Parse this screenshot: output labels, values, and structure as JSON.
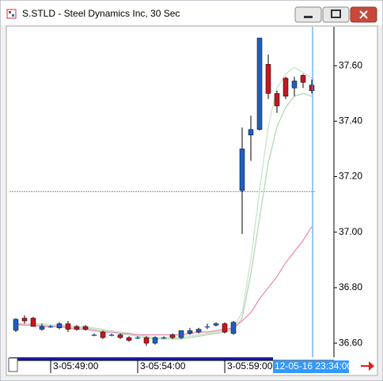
{
  "window": {
    "title": "S.STLD - Steel Dynamics Inc, 30 Sec"
  },
  "chart_data": {
    "type": "candlestick",
    "categories": [
      null,
      null,
      null,
      null,
      "3-05:49:00",
      null,
      null,
      null,
      null,
      null,
      null,
      null,
      null,
      null,
      "3-05:54:00",
      null,
      null,
      null,
      null,
      null,
      null,
      null,
      null,
      null,
      "3-05:59:00",
      null,
      null,
      null,
      null,
      null,
      null,
      null,
      null,
      null,
      null
    ],
    "open": [
      36.646,
      36.69,
      36.69,
      36.65,
      36.66,
      36.655,
      36.67,
      36.66,
      36.66,
      36.63,
      36.64,
      36.63,
      36.63,
      36.62,
      36.62,
      36.62,
      36.6,
      36.62,
      36.63,
      36.62,
      36.635,
      36.64,
      36.66,
      36.665,
      36.67,
      36.635,
      37.15,
      37.35,
      37.37,
      37.605,
      37.5,
      37.555,
      37.52,
      37.565,
      37.53
    ],
    "high": [
      36.69,
      36.7,
      36.695,
      36.67,
      36.665,
      36.675,
      36.68,
      36.665,
      36.665,
      36.635,
      36.645,
      36.635,
      36.635,
      36.625,
      36.625,
      36.625,
      36.625,
      36.625,
      36.635,
      36.645,
      36.655,
      36.655,
      36.67,
      36.675,
      36.675,
      36.68,
      37.377,
      37.42,
      37.7,
      37.64,
      37.51,
      37.56,
      37.56,
      37.57,
      37.55
    ],
    "low": [
      36.64,
      36.67,
      36.66,
      36.645,
      36.655,
      36.65,
      36.64,
      36.645,
      36.645,
      36.625,
      36.615,
      36.625,
      36.615,
      36.605,
      36.615,
      36.59,
      36.595,
      36.615,
      36.615,
      36.615,
      36.63,
      36.635,
      36.65,
      36.66,
      36.635,
      36.63,
      36.994,
      37.257,
      37.366,
      37.48,
      37.43,
      37.48,
      37.49,
      37.52,
      37.5
    ],
    "close": [
      36.686,
      36.68,
      36.66,
      36.66,
      36.66,
      36.67,
      36.65,
      36.65,
      36.65,
      36.63,
      36.62,
      36.63,
      36.62,
      36.61,
      36.62,
      36.6,
      36.62,
      36.62,
      36.62,
      36.645,
      36.645,
      36.65,
      36.66,
      36.67,
      36.64,
      36.675,
      37.3,
      37.37,
      37.7,
      37.5,
      37.455,
      37.49,
      37.545,
      37.54,
      37.51
    ],
    "up_color": "#1f5fc0",
    "down_color": "#c8161d",
    "lines": [
      {
        "color": "#c8e4c8",
        "values": [
          36.67,
          36.67,
          36.67,
          36.67,
          36.665,
          36.665,
          36.665,
          36.66,
          36.66,
          36.655,
          36.65,
          36.645,
          36.64,
          36.635,
          36.63,
          36.625,
          36.62,
          36.62,
          36.62,
          36.62,
          36.625,
          36.63,
          36.635,
          36.64,
          36.645,
          36.655,
          36.71,
          36.9,
          37.15,
          37.38,
          37.52,
          37.57,
          37.595,
          37.575,
          37.555
        ]
      },
      {
        "color": "#b4d8b4",
        "values": [
          36.665,
          36.665,
          36.665,
          36.665,
          36.66,
          36.66,
          36.66,
          36.655,
          36.655,
          36.65,
          36.645,
          36.64,
          36.635,
          36.63,
          36.625,
          36.62,
          36.615,
          36.615,
          36.615,
          36.615,
          36.62,
          36.625,
          36.63,
          36.635,
          36.64,
          36.65,
          36.69,
          36.85,
          37.05,
          37.25,
          37.38,
          37.45,
          37.49,
          37.5,
          37.49
        ]
      },
      {
        "color": "#f08cb4",
        "values": [
          36.67,
          36.665,
          36.665,
          36.66,
          36.66,
          36.66,
          36.655,
          36.65,
          36.65,
          36.645,
          36.64,
          36.64,
          36.635,
          36.635,
          36.63,
          36.63,
          36.63,
          36.63,
          36.63,
          36.63,
          36.635,
          36.64,
          36.64,
          36.645,
          36.65,
          36.655,
          36.68,
          36.71,
          36.76,
          36.8,
          36.84,
          36.89,
          36.93,
          36.97,
          37.02
        ]
      }
    ],
    "reference_line": 37.146,
    "cursor_label": "12-05-16 23:34:00",
    "ylim": [
      36.549,
      37.74
    ],
    "yticks": [
      {
        "value": 36.6,
        "label": "36.60"
      },
      {
        "value": 36.8,
        "label": "36.80"
      },
      {
        "value": 37.0,
        "label": "37.00"
      },
      {
        "value": 37.2,
        "label": "37.20"
      },
      {
        "value": 37.4,
        "label": "37.40"
      },
      {
        "value": 37.6,
        "label": "37.60"
      }
    ]
  }
}
